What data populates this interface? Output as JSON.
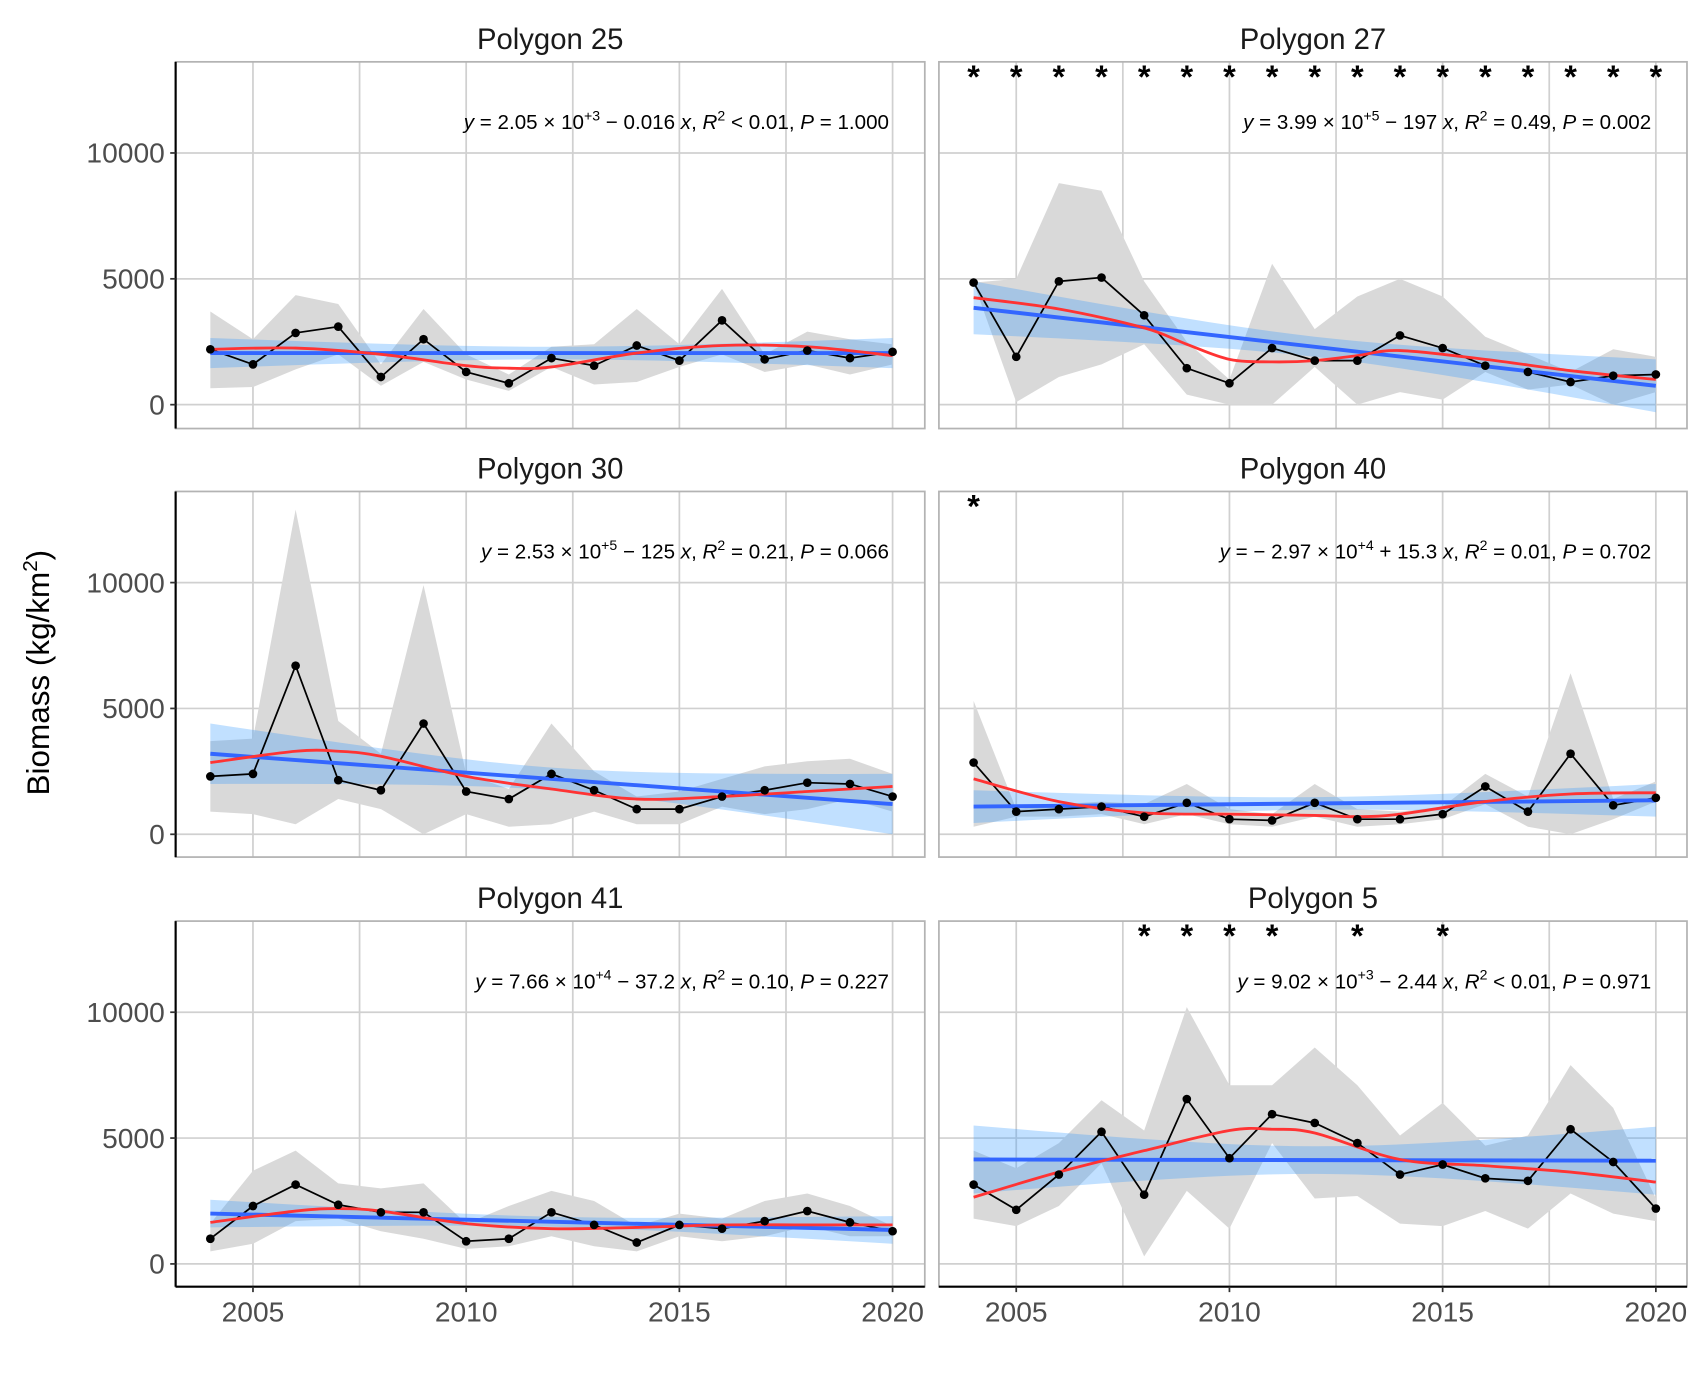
{
  "chart_data": {
    "type": "line",
    "layout": "facets 3 rows x 2 columns",
    "ylabel": "Biomass (kg/km2)",
    "ylabel_parts": {
      "main": "Biomass (kg/km",
      "sup": "2",
      "close": ")"
    },
    "x": [
      2004,
      2005,
      2006,
      2007,
      2008,
      2009,
      2010,
      2011,
      2012,
      2013,
      2014,
      2015,
      2016,
      2017,
      2018,
      2019,
      2020
    ],
    "xticks": [
      "2005",
      "2010",
      "2015",
      "2020"
    ],
    "yticks": [
      "0",
      "5000",
      "10000"
    ],
    "xlim": [
      2003.2,
      2020.8
    ],
    "ylim": [
      -950,
      13600
    ],
    "grid": true,
    "colors": {
      "points": "#000000",
      "ribbon": "#d9d9d9",
      "lm_line": "#3366ff",
      "lm_ci": "#3399ff",
      "loess": "#ff3333"
    },
    "panels": [
      {
        "title": "Polygon 25",
        "equation": {
          "y": "y",
          "intercept": "2.05",
          "times": "× 10",
          "exponent": "+3",
          "slope": "− 0.016",
          "x": "x",
          "r": "R",
          "r_exp": "2",
          "r2_op": "<",
          "r2": "0.01",
          "p_label": "P",
          "p": "1.000"
        },
        "asterisk_years": [],
        "values": [
          2200,
          1600,
          2850,
          3100,
          1100,
          2600,
          1300,
          850,
          1850,
          1550,
          2350,
          1750,
          3350,
          1800,
          2150,
          1850,
          2100
        ],
        "ribbon_upper": [
          3700,
          2600,
          4350,
          4000,
          1600,
          3800,
          2000,
          1200,
          2300,
          2400,
          3800,
          2400,
          4600,
          2000,
          2900,
          2600,
          2400
        ],
        "ribbon_lower": [
          650,
          700,
          1400,
          2000,
          750,
          1700,
          1000,
          550,
          1500,
          800,
          900,
          1500,
          2000,
          1300,
          1600,
          1200,
          1600
        ],
        "lm": {
          "y2004": 2050,
          "y2020": 2050,
          "ci_half_center": 250,
          "ci_half_ends": 600
        },
        "loess": {
          "x": [
            2004,
            2006,
            2008,
            2010,
            2011,
            2012,
            2014,
            2016,
            2018,
            2020
          ],
          "y": [
            2200,
            2250,
            2000,
            1550,
            1450,
            1500,
            2050,
            2350,
            2300,
            1950
          ]
        }
      },
      {
        "title": "Polygon 27",
        "equation": {
          "y": "y",
          "intercept": "3.99",
          "times": "× 10",
          "exponent": "+5",
          "slope": "− 197",
          "x": "x",
          "r": "R",
          "r_exp": "2",
          "r2_op": "=",
          "r2": "0.49",
          "p_label": "P",
          "p": "0.002"
        },
        "asterisk_years": [
          2004,
          2005,
          2006,
          2007,
          2008,
          2009,
          2010,
          2011,
          2012,
          2013,
          2014,
          2015,
          2016,
          2017,
          2018,
          2019,
          2020
        ],
        "asterisk_glyph": "*",
        "values": [
          4850,
          1900,
          4900,
          5050,
          3550,
          1450,
          850,
          2250,
          1750,
          1750,
          2750,
          2250,
          1550,
          1300,
          900,
          1150,
          1200
        ],
        "ribbon_upper": [
          4850,
          5000,
          8800,
          8500,
          4900,
          2500,
          1000,
          5600,
          3000,
          4300,
          5000,
          4300,
          2700,
          2000,
          1300,
          2200,
          1900
        ],
        "ribbon_lower": [
          4850,
          100,
          1100,
          1600,
          2400,
          400,
          0,
          0,
          1500,
          0,
          500,
          200,
          1300,
          600,
          800,
          0,
          500
        ],
        "lm": {
          "y2004": 3850,
          "y2020": 750,
          "ci_half_center": 400,
          "ci_half_ends": 1050
        },
        "loess": {
          "x": [
            2004,
            2006,
            2008,
            2009,
            2010,
            2011,
            2012,
            2013,
            2014,
            2016,
            2018,
            2020
          ],
          "y": [
            4250,
            3800,
            3050,
            2400,
            1800,
            1700,
            1750,
            1950,
            2150,
            1800,
            1350,
            1000
          ]
        }
      },
      {
        "title": "Polygon 30",
        "equation": {
          "y": "y",
          "intercept": "2.53",
          "times": "× 10",
          "exponent": "+5",
          "slope": "− 125",
          "x": "x",
          "r": "R",
          "r_exp": "2",
          "r2_op": "=",
          "r2": "0.21",
          "p_label": "P",
          "p": "0.066"
        },
        "asterisk_years": [],
        "values": [
          2300,
          2400,
          6700,
          2150,
          1750,
          4400,
          1700,
          1400,
          2400,
          1750,
          1000,
          1000,
          1500,
          1750,
          2050,
          2000,
          1500
        ],
        "ribbon_upper": [
          3700,
          3800,
          12900,
          4500,
          3200,
          9900,
          2400,
          1800,
          4400,
          2500,
          1500,
          1700,
          2200,
          2700,
          2900,
          3000,
          2400
        ],
        "ribbon_lower": [
          900,
          800,
          400,
          1400,
          1000,
          0,
          800,
          300,
          400,
          900,
          400,
          400,
          1100,
          800,
          1000,
          1400,
          900
        ],
        "lm": {
          "y2004": 3200,
          "y2020": 1200,
          "ci_half_center": 450,
          "ci_half_ends": 1200
        },
        "loess": {
          "x": [
            2004,
            2006,
            2007,
            2008,
            2010,
            2012,
            2014,
            2016,
            2018,
            2020
          ],
          "y": [
            2850,
            3300,
            3300,
            3100,
            2300,
            1800,
            1400,
            1500,
            1700,
            1900
          ]
        }
      },
      {
        "title": "Polygon 40",
        "equation": {
          "y": "y",
          "intercept": "− 2.97",
          "times": "× 10",
          "exponent": "+4",
          "slope": "+ 15.3",
          "x": "x",
          "r": "R",
          "r_exp": "2",
          "r2_op": "=",
          "r2": "0.01",
          "p_label": "P",
          "p": "0.702"
        },
        "asterisk_years": [
          2004
        ],
        "asterisk_glyph": "*",
        "values": [
          2850,
          900,
          1000,
          1100,
          700,
          1250,
          600,
          550,
          1250,
          600,
          600,
          800,
          1900,
          900,
          3200,
          1150,
          1450
        ],
        "ribbon_upper": [
          5300,
          1000,
          1200,
          1300,
          1200,
          2000,
          1000,
          800,
          2000,
          1000,
          900,
          1100,
          2400,
          1500,
          6400,
          1400,
          2100
        ],
        "ribbon_lower": [
          300,
          700,
          700,
          800,
          400,
          800,
          400,
          300,
          700,
          300,
          400,
          600,
          1200,
          300,
          0,
          600,
          1300
        ],
        "lm": {
          "y2004": 1100,
          "y2020": 1350,
          "ci_half_center": 250,
          "ci_half_ends": 650
        },
        "loess": {
          "x": [
            2004,
            2006,
            2008,
            2010,
            2012,
            2013,
            2014,
            2016,
            2018,
            2020
          ],
          "y": [
            2200,
            1300,
            850,
            800,
            750,
            700,
            800,
            1300,
            1600,
            1650
          ]
        }
      },
      {
        "title": "Polygon 41",
        "equation": {
          "y": "y",
          "intercept": "7.66",
          "times": "× 10",
          "exponent": "+4",
          "slope": "− 37.2",
          "x": "x",
          "r": "R",
          "r_exp": "2",
          "r2_op": "=",
          "r2": "0.10",
          "p_label": "P",
          "p": "0.227"
        },
        "asterisk_years": [],
        "values": [
          1000,
          2300,
          3150,
          2350,
          2050,
          2050,
          900,
          1000,
          2050,
          1550,
          850,
          1550,
          1400,
          1700,
          2100,
          1650,
          1300
        ],
        "ribbon_upper": [
          1600,
          3700,
          4500,
          3200,
          3000,
          3200,
          1600,
          2300,
          2900,
          2500,
          1500,
          2000,
          1800,
          2500,
          2800,
          2300,
          1500
        ],
        "ribbon_lower": [
          500,
          800,
          1700,
          1800,
          1300,
          1000,
          600,
          700,
          1100,
          700,
          500,
          1100,
          900,
          1100,
          1500,
          1100,
          1100
        ],
        "lm": {
          "y2004": 2000,
          "y2020": 1350,
          "ci_half_center": 200,
          "ci_half_ends": 550
        },
        "loess": {
          "x": [
            2004,
            2006,
            2007,
            2008,
            2010,
            2012,
            2014,
            2016,
            2018,
            2020
          ],
          "y": [
            1650,
            2100,
            2200,
            2100,
            1600,
            1400,
            1450,
            1550,
            1550,
            1550
          ]
        }
      },
      {
        "title": "Polygon 5",
        "equation": {
          "y": "y",
          "intercept": "9.02",
          "times": "× 10",
          "exponent": "+3",
          "slope": "− 2.44",
          "x": "x",
          "r": "R",
          "r_exp": "2",
          "r2_op": "<",
          "r2": "0.01",
          "p_label": "P",
          "p": "0.971"
        },
        "asterisk_years": [
          2008,
          2009,
          2010,
          2011,
          2013,
          2015
        ],
        "asterisk_glyph": "*",
        "values": [
          3150,
          2150,
          3550,
          5250,
          2750,
          6550,
          4200,
          5950,
          5600,
          4800,
          3550,
          3950,
          3400,
          3300,
          5350,
          4050,
          2200
        ],
        "ribbon_upper": [
          4500,
          3800,
          4800,
          6500,
          5300,
          10200,
          7100,
          7100,
          8600,
          7100,
          5100,
          6400,
          4700,
          5100,
          7900,
          6200,
          2600
        ],
        "ribbon_lower": [
          1800,
          1500,
          2300,
          4000,
          300,
          2900,
          1400,
          4800,
          2600,
          2700,
          1600,
          1500,
          2100,
          1400,
          2800,
          2000,
          1700
        ],
        "lm": {
          "y2004": 4150,
          "y2020": 4100,
          "ci_half_center": 550,
          "ci_half_ends": 1350
        },
        "loess": {
          "x": [
            2004,
            2006,
            2008,
            2010,
            2011,
            2012,
            2014,
            2016,
            2018,
            2020
          ],
          "y": [
            2650,
            3650,
            4500,
            5300,
            5350,
            5200,
            4150,
            3900,
            3650,
            3250
          ]
        }
      }
    ]
  }
}
